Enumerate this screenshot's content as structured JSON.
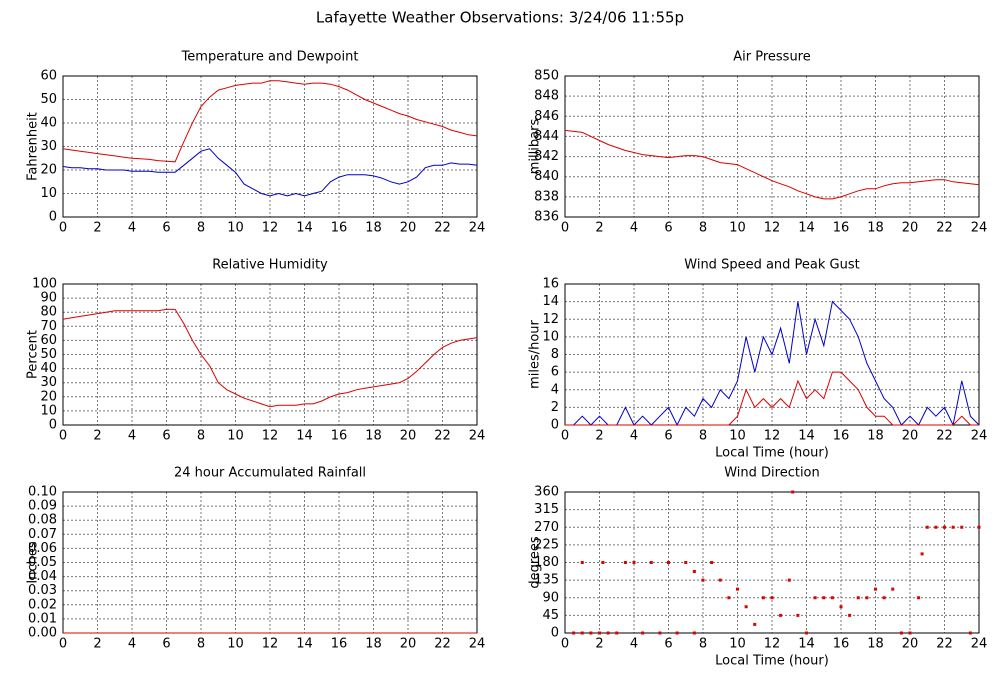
{
  "title": "Lafayette Weather Observations: 3/24/06 11:55p",
  "chart_data": [
    {
      "type": "line",
      "title": "Temperature and Dewpoint",
      "ylabel": "Fahrenheit",
      "grid": true,
      "xlim": [
        0,
        24
      ],
      "xticks": [
        0,
        2,
        4,
        6,
        8,
        10,
        12,
        14,
        16,
        18,
        20,
        22,
        24
      ],
      "ylim": [
        0,
        60
      ],
      "yticks": [
        0,
        10,
        20,
        30,
        40,
        50,
        60
      ],
      "x": [
        0,
        0.5,
        1,
        1.5,
        2,
        2.5,
        3,
        3.5,
        4,
        4.5,
        5,
        5.5,
        6,
        6.5,
        7,
        7.5,
        8,
        8.5,
        9,
        9.5,
        10,
        10.5,
        11,
        11.5,
        12,
        12.5,
        13,
        13.5,
        14,
        14.5,
        15,
        15.5,
        16,
        16.5,
        17,
        17.5,
        18,
        18.5,
        19,
        19.5,
        20,
        20.5,
        21,
        21.5,
        22,
        22.5,
        23,
        23.5,
        24
      ],
      "series": [
        {
          "color": "#dd0000",
          "values": [
            29,
            28.5,
            28,
            27.5,
            27,
            26.5,
            26,
            25.5,
            25,
            24.8,
            24.5,
            24,
            23.7,
            23.5,
            32,
            40,
            47,
            51,
            54,
            55,
            56,
            56.5,
            57,
            57,
            58,
            58,
            57.5,
            57,
            56.5,
            57,
            57,
            56.5,
            55.5,
            54,
            52,
            50,
            48.5,
            47,
            45.5,
            44,
            43,
            41.5,
            40.5,
            39.5,
            38.5,
            37,
            36,
            35,
            34.5
          ]
        },
        {
          "color": "#0000cc",
          "values": [
            21.5,
            21,
            21,
            20.5,
            20.5,
            20,
            20,
            20,
            19.5,
            19.5,
            19.5,
            19,
            19,
            19,
            22,
            25,
            28,
            29,
            25,
            22,
            19,
            14,
            12,
            10,
            9,
            10,
            9,
            10,
            9,
            10,
            11,
            15,
            17,
            18,
            18,
            18,
            17.5,
            16.5,
            15,
            14,
            15,
            17,
            21,
            22,
            22,
            23,
            22.5,
            22.5,
            22
          ]
        }
      ]
    },
    {
      "type": "line",
      "title": "Air Pressure",
      "ylabel": "millibars",
      "grid": true,
      "xlim": [
        0,
        24
      ],
      "xticks": [
        0,
        2,
        4,
        6,
        8,
        10,
        12,
        14,
        16,
        18,
        20,
        22,
        24
      ],
      "ylim": [
        836,
        850
      ],
      "yticks": [
        836,
        838,
        840,
        842,
        844,
        846,
        848,
        850
      ],
      "x": [
        0,
        0.5,
        1,
        1.5,
        2,
        2.5,
        3,
        3.5,
        4,
        4.5,
        5,
        5.5,
        6,
        6.5,
        7,
        7.5,
        8,
        8.5,
        9,
        9.5,
        10,
        10.5,
        11,
        11.5,
        12,
        12.5,
        13,
        13.5,
        14,
        14.5,
        15,
        15.5,
        16,
        16.5,
        17,
        17.5,
        18,
        18.5,
        19,
        19.5,
        20,
        20.5,
        21,
        21.5,
        22,
        22.5,
        23,
        23.5,
        24
      ],
      "series": [
        {
          "color": "#dd0000",
          "values": [
            844.6,
            844.5,
            844.4,
            844,
            843.6,
            843.2,
            842.9,
            842.6,
            842.4,
            842.2,
            842.1,
            842,
            841.9,
            842,
            842.1,
            842.1,
            842,
            841.7,
            841.4,
            841.3,
            841.2,
            840.8,
            840.4,
            840,
            839.6,
            839.3,
            839,
            838.6,
            838.3,
            838,
            837.8,
            837.8,
            838,
            838.3,
            838.6,
            838.8,
            838.8,
            839.1,
            839.3,
            839.4,
            839.4,
            839.5,
            839.6,
            839.7,
            839.7,
            839.5,
            839.4,
            839.3,
            839.2
          ]
        }
      ]
    },
    {
      "type": "line",
      "title": "Relative Humidity",
      "ylabel": "Percent",
      "grid": true,
      "xlim": [
        0,
        24
      ],
      "xticks": [
        0,
        2,
        4,
        6,
        8,
        10,
        12,
        14,
        16,
        18,
        20,
        22,
        24
      ],
      "ylim": [
        0,
        100
      ],
      "yticks": [
        0,
        10,
        20,
        30,
        40,
        50,
        60,
        70,
        80,
        90,
        100
      ],
      "x": [
        0,
        0.5,
        1,
        1.5,
        2,
        2.5,
        3,
        3.5,
        4,
        4.5,
        5,
        5.5,
        6,
        6.5,
        7,
        7.5,
        8,
        8.5,
        9,
        9.5,
        10,
        10.5,
        11,
        11.5,
        12,
        12.5,
        13,
        13.5,
        14,
        14.5,
        15,
        15.5,
        16,
        16.5,
        17,
        17.5,
        18,
        18.5,
        19,
        19.5,
        20,
        20.5,
        21,
        21.5,
        22,
        22.5,
        23,
        23.5,
        24
      ],
      "series": [
        {
          "color": "#dd0000",
          "values": [
            75,
            76,
            77,
            78,
            79,
            80,
            81,
            81,
            81,
            81,
            81,
            81,
            82,
            82,
            72,
            60,
            50,
            42,
            30,
            25,
            22,
            19,
            17,
            15,
            13,
            14,
            14,
            14,
            15,
            15,
            17,
            20,
            22,
            23,
            25,
            26,
            27,
            28,
            29,
            30,
            33,
            38,
            44,
            50,
            55,
            58,
            60,
            61,
            62
          ]
        }
      ]
    },
    {
      "type": "line",
      "title": "Wind Speed and Peak Gust",
      "ylabel": "miles/hour",
      "xlabel": "Local Time (hour)",
      "grid": true,
      "xlim": [
        0,
        24
      ],
      "xticks": [
        0,
        2,
        4,
        6,
        8,
        10,
        12,
        14,
        16,
        18,
        20,
        22,
        24
      ],
      "ylim": [
        0,
        16
      ],
      "yticks": [
        0,
        2,
        4,
        6,
        8,
        10,
        12,
        14,
        16
      ],
      "x": [
        0,
        0.5,
        1,
        1.5,
        2,
        2.5,
        3,
        3.5,
        4,
        4.5,
        5,
        5.5,
        6,
        6.5,
        7,
        7.5,
        8,
        8.5,
        9,
        9.5,
        10,
        10.5,
        11,
        11.5,
        12,
        12.5,
        13,
        13.5,
        14,
        14.5,
        15,
        15.5,
        16,
        16.5,
        17,
        17.5,
        18,
        18.5,
        19,
        19.5,
        20,
        20.5,
        21,
        21.5,
        22,
        22.5,
        23,
        23.5,
        24
      ],
      "series": [
        {
          "color": "#0000cc",
          "values": [
            0,
            0,
            1,
            0,
            1,
            0,
            0,
            2,
            0,
            1,
            0,
            1,
            2,
            0,
            2,
            1,
            3,
            2,
            4,
            3,
            5,
            10,
            6,
            10,
            8,
            11,
            7,
            14,
            8,
            12,
            9,
            14,
            13,
            12,
            10,
            7,
            5,
            3,
            2,
            0,
            1,
            0,
            2,
            1,
            2,
            0,
            5,
            1,
            0
          ]
        },
        {
          "color": "#dd0000",
          "values": [
            0,
            0,
            0,
            0,
            0,
            0,
            0,
            0,
            0,
            0,
            0,
            0,
            0,
            0,
            0,
            0,
            0,
            0,
            0,
            0,
            1,
            4,
            2,
            3,
            2,
            3,
            2,
            5,
            3,
            4,
            3,
            6,
            6,
            5,
            4,
            2,
            1,
            1,
            0,
            0,
            0,
            0,
            0,
            0,
            0,
            0,
            1,
            0,
            0
          ]
        }
      ]
    },
    {
      "type": "line",
      "title": "24 hour Accumulated Rainfall",
      "ylabel": "Inches",
      "grid": true,
      "xlim": [
        0,
        24
      ],
      "xticks": [
        0,
        2,
        4,
        6,
        8,
        10,
        12,
        14,
        16,
        18,
        20,
        22,
        24
      ],
      "ylim": [
        0,
        0.1
      ],
      "yticks": [
        {
          "value": 0,
          "label": "0.00"
        },
        {
          "value": 0.01,
          "label": "0.01"
        },
        {
          "value": 0.02,
          "label": "0.02"
        },
        {
          "value": 0.03,
          "label": "0.03"
        },
        {
          "value": 0.04,
          "label": "0.04"
        },
        {
          "value": 0.05,
          "label": "0.05"
        },
        {
          "value": 0.06,
          "label": "0.06"
        },
        {
          "value": 0.07,
          "label": "0.07"
        },
        {
          "value": 0.08,
          "label": "0.08"
        },
        {
          "value": 0.09,
          "label": "0.09"
        },
        {
          "value": 0.1,
          "label": "0.10"
        }
      ],
      "x": [
        0,
        24
      ],
      "series": [
        {
          "color": "#dd0000",
          "values": [
            0,
            0
          ]
        }
      ]
    },
    {
      "type": "scatter",
      "title": "Wind Direction",
      "ylabel": "degrees",
      "xlabel": "Local Time (hour)",
      "grid": true,
      "xlim": [
        0,
        24
      ],
      "xticks": [
        0,
        2,
        4,
        6,
        8,
        10,
        12,
        14,
        16,
        18,
        20,
        22,
        24
      ],
      "ylim": [
        0,
        360
      ],
      "yticks": [
        0,
        45,
        90,
        135,
        180,
        225,
        270,
        315,
        360
      ],
      "x": [
        0.5,
        1,
        1.5,
        2,
        2.5,
        1,
        2.2,
        3,
        3.5,
        4,
        4.5,
        5,
        5.5,
        6,
        6.5,
        7,
        7.5,
        7.5,
        8,
        8.5,
        9,
        9.5,
        10,
        10.5,
        11,
        11.5,
        12,
        12.5,
        13,
        13.2,
        13.5,
        14,
        14.5,
        15,
        15.5,
        16,
        16.5,
        17,
        17.5,
        18,
        18.5,
        19,
        19.5,
        20,
        20.5,
        20.7,
        21,
        21.5,
        22,
        22.5,
        23,
        23.5,
        24
      ],
      "series": [
        {
          "color": "#dd0000",
          "values": [
            0,
            0,
            0,
            0,
            0,
            180,
            180,
            0,
            180,
            180,
            0,
            180,
            0,
            180,
            0,
            180,
            0,
            157,
            135,
            180,
            135,
            90,
            112,
            67,
            22,
            90,
            90,
            45,
            135,
            360,
            45,
            0,
            90,
            90,
            90,
            67,
            45,
            90,
            90,
            112,
            90,
            112,
            0,
            0,
            90,
            202,
            270,
            270,
            270,
            270,
            270,
            0,
            270
          ]
        }
      ]
    }
  ]
}
